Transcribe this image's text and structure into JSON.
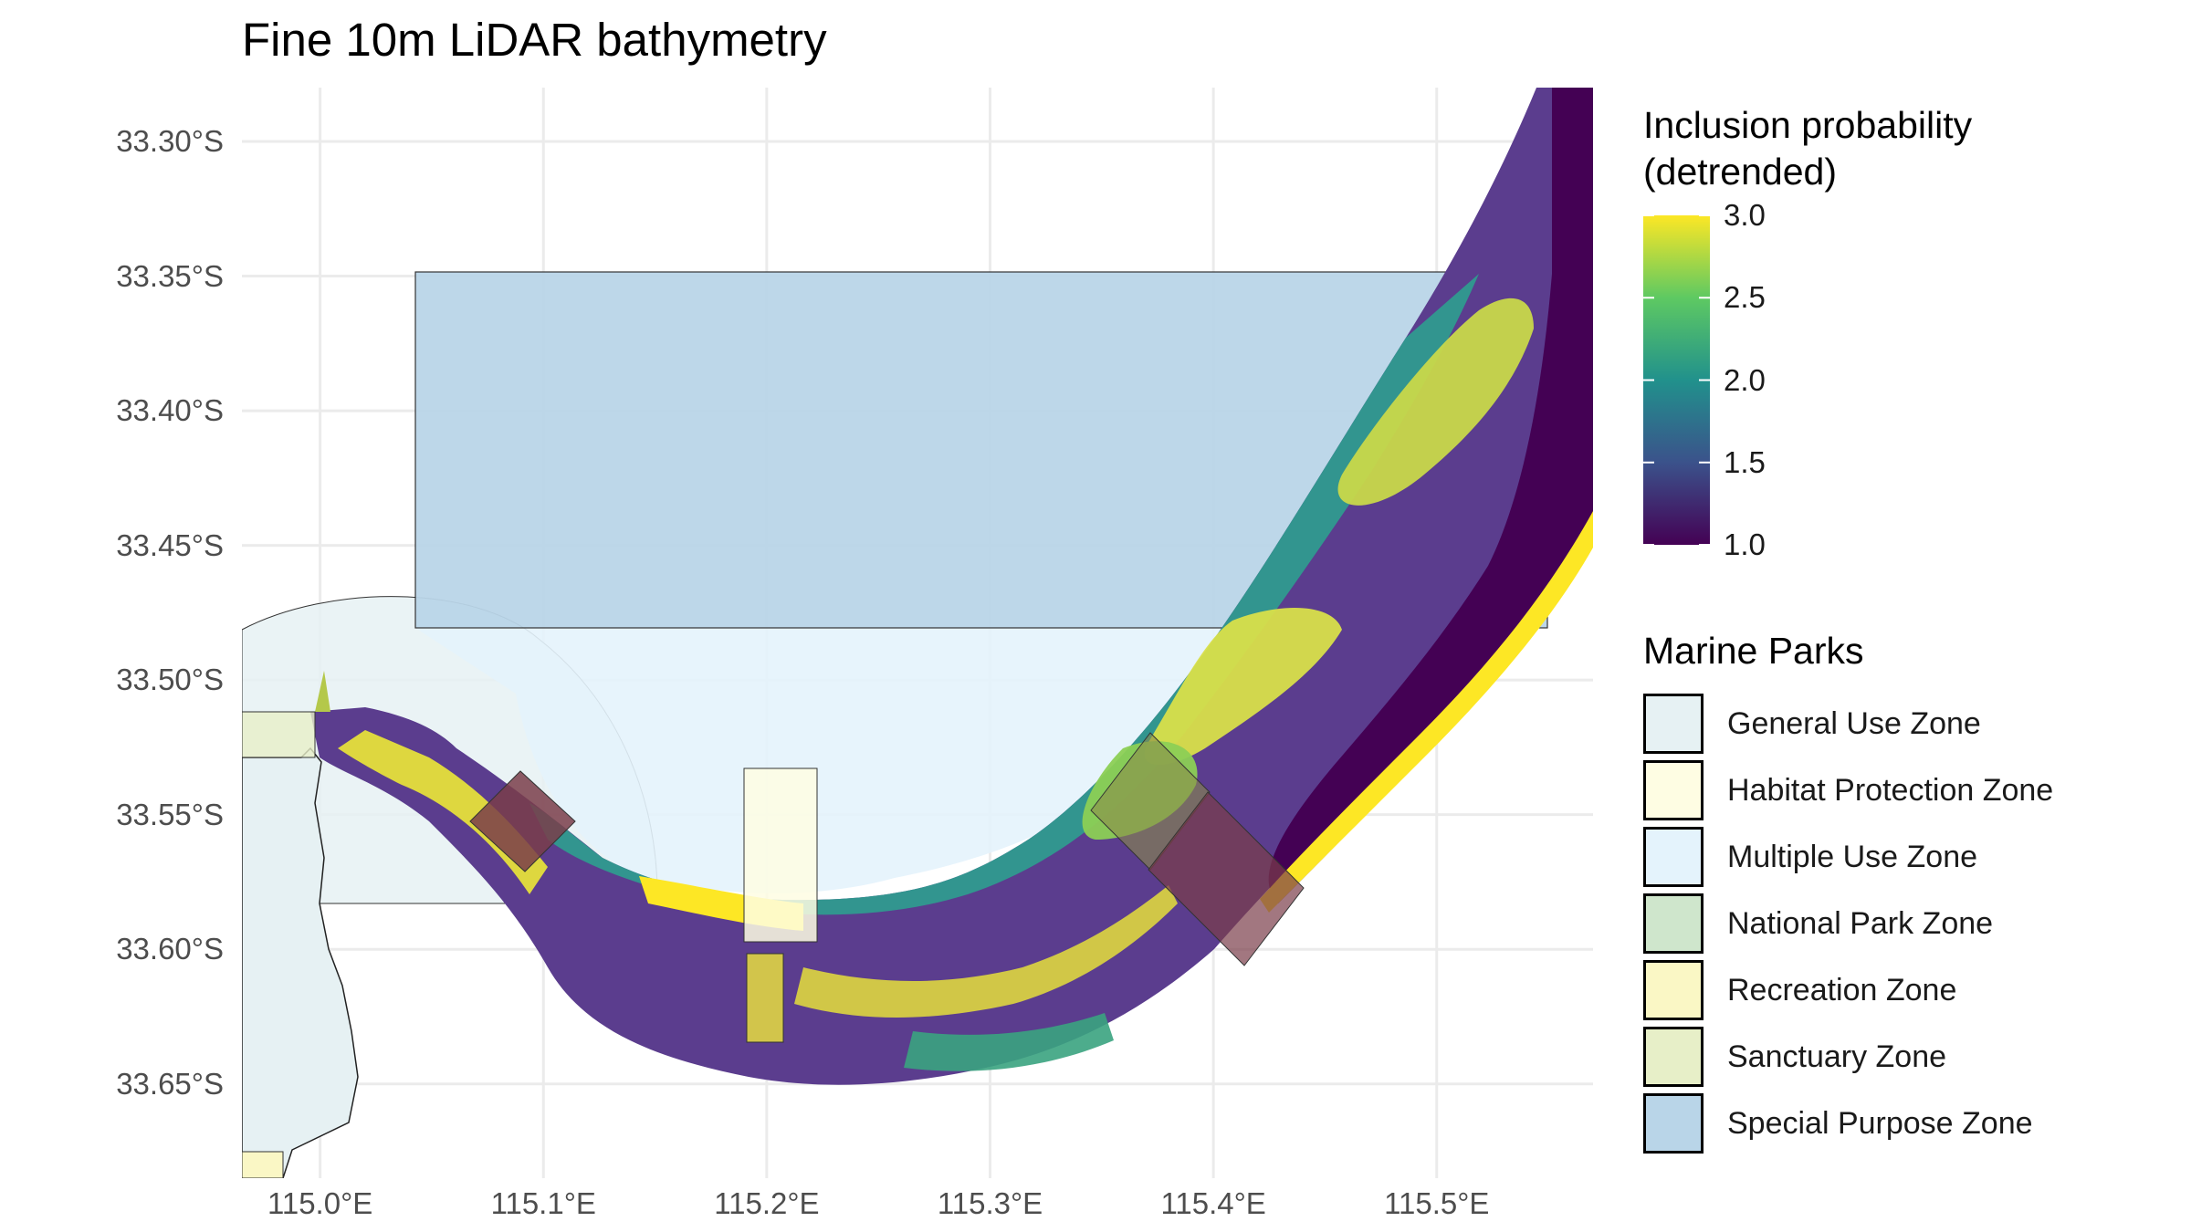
{
  "title": "Fine 10m LiDAR bathymetry",
  "axes": {
    "y_ticks": [
      {
        "lat": -33.3,
        "label": "33.30°S"
      },
      {
        "lat": -33.35,
        "label": "33.35°S"
      },
      {
        "lat": -33.4,
        "label": "33.40°S"
      },
      {
        "lat": -33.45,
        "label": "33.45°S"
      },
      {
        "lat": -33.5,
        "label": "33.50°S"
      },
      {
        "lat": -33.55,
        "label": "33.55°S"
      },
      {
        "lat": -33.6,
        "label": "33.60°S"
      },
      {
        "lat": -33.65,
        "label": "33.65°S"
      }
    ],
    "x_ticks": [
      {
        "lon": 115.0,
        "label": "115.0°E"
      },
      {
        "lon": 115.1,
        "label": "115.1°E"
      },
      {
        "lon": 115.2,
        "label": "115.2°E"
      },
      {
        "lon": 115.3,
        "label": "115.3°E"
      },
      {
        "lon": 115.4,
        "label": "115.4°E"
      },
      {
        "lon": 115.5,
        "label": "115.5°E"
      }
    ],
    "lon_range": [
      114.965,
      115.57
    ],
    "lat_range": [
      -33.685,
      -33.28
    ],
    "grid": true
  },
  "colorbar": {
    "title_line1": "Inclusion probability",
    "title_line2": "(detrended)",
    "min": 1.0,
    "max": 3.0,
    "labels": [
      {
        "value": 3.0,
        "label": "3.0"
      },
      {
        "value": 2.5,
        "label": "2.5"
      },
      {
        "value": 2.0,
        "label": "2.0"
      },
      {
        "value": 1.5,
        "label": "1.5"
      },
      {
        "value": 1.0,
        "label": "1.0"
      }
    ],
    "colors": [
      "#440154",
      "#3b528b",
      "#21918c",
      "#5ec962",
      "#fde725"
    ]
  },
  "marine_parks": {
    "title": "Marine Parks",
    "items": [
      {
        "label": "General Use Zone",
        "color": "#e6f1f3"
      },
      {
        "label": "Habitat Protection Zone",
        "color": "#fefde3"
      },
      {
        "label": "Multiple Use Zone",
        "color": "#e4f3fc"
      },
      {
        "label": "National Park Zone",
        "color": "#cfe6cc"
      },
      {
        "label": "Recreation Zone",
        "color": "#faf7c5"
      },
      {
        "label": "Sanctuary Zone",
        "color": "#e7efc8"
      },
      {
        "label": "Special Purpose Zone",
        "color": "#b9d5e8"
      }
    ]
  }
}
